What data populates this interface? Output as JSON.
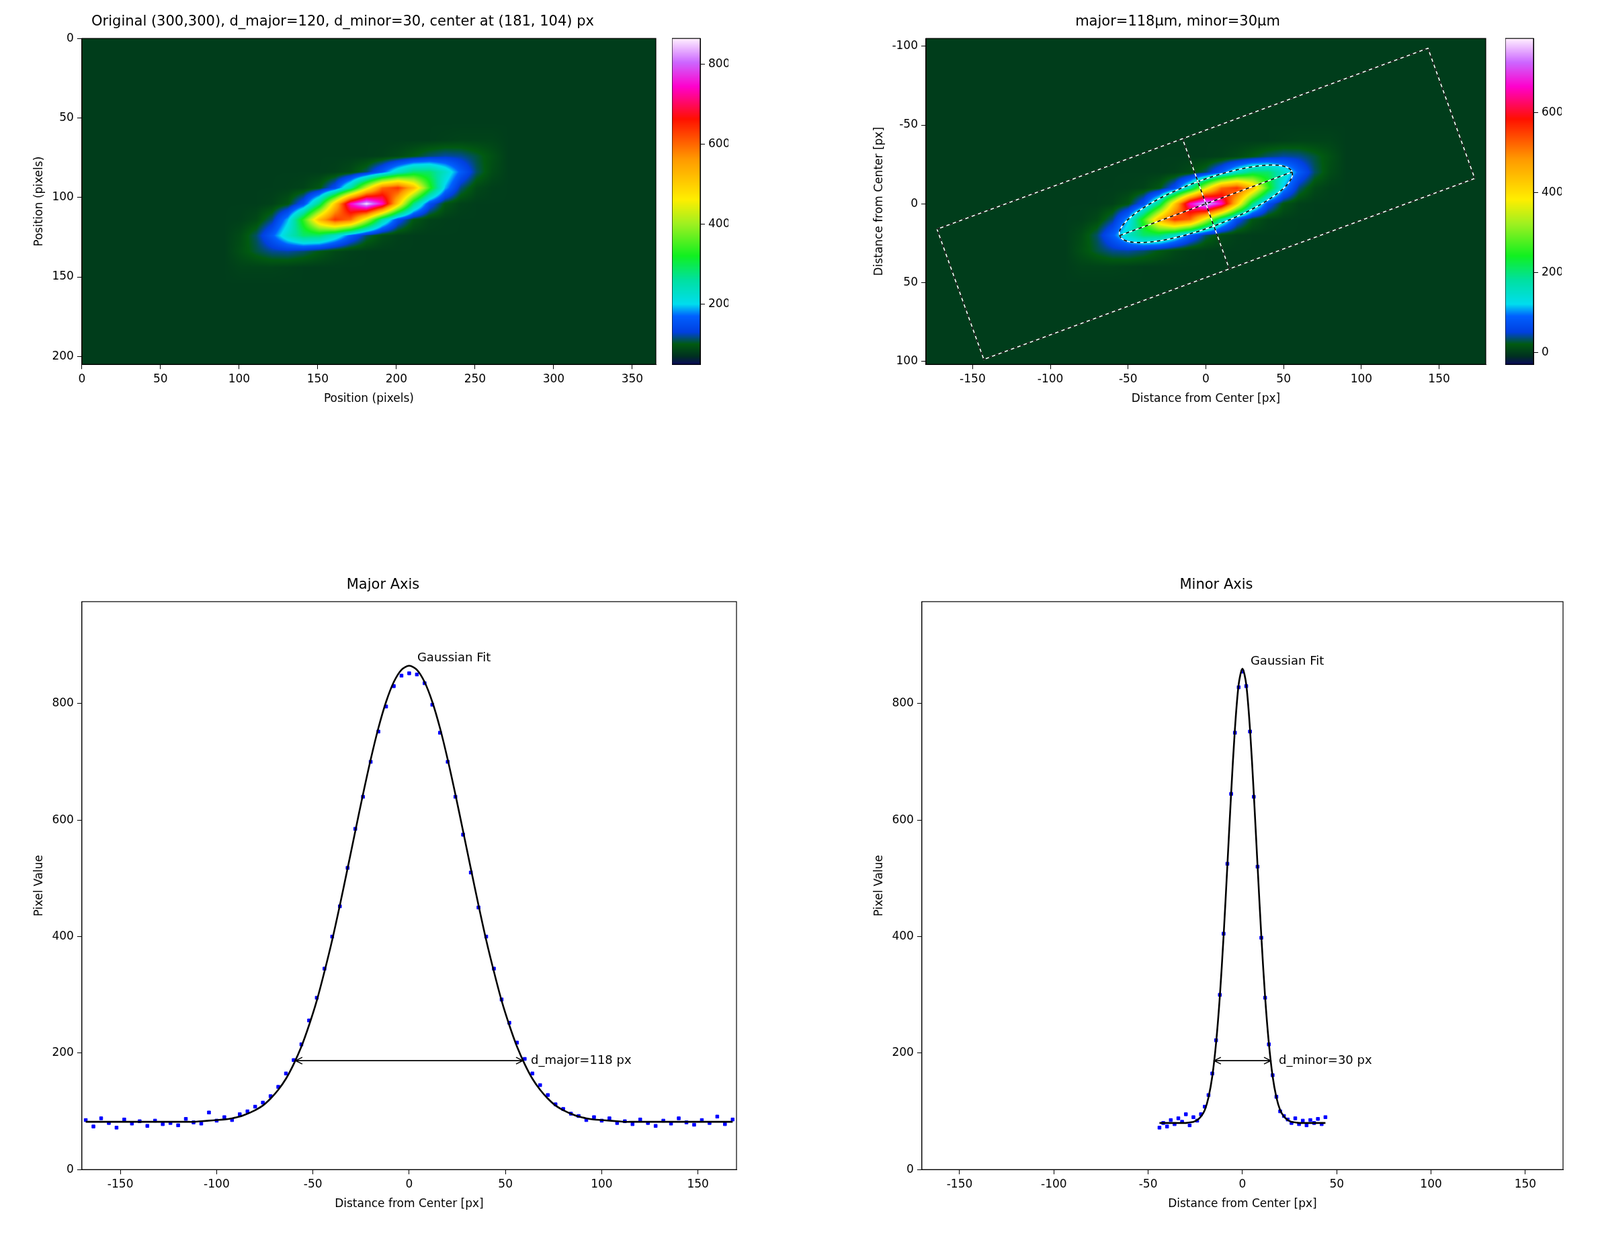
{
  "chart_data": [
    {
      "type": "heatmap",
      "title": "Original (300,300), d_major=120, d_minor=30, center at (181, 104) px",
      "x_label": "Position (pixels)",
      "y_label": "Position (pixels)",
      "xlim": [
        0,
        365
      ],
      "ylim": [
        205,
        0
      ],
      "xticks": [
        0,
        50,
        100,
        150,
        200,
        250,
        300,
        350
      ],
      "yticks": [
        0,
        50,
        100,
        150,
        200
      ],
      "grid": false,
      "background": 80,
      "cells": {
        "x": [
          101,
          111,
          121,
          131,
          141,
          151,
          161,
          171,
          181,
          191,
          201,
          211,
          221,
          231,
          241,
          251,
          261
        ],
        "y": [
          64,
          74,
          84,
          94,
          104,
          114,
          124,
          134,
          144
        ],
        "values": [
          [
            80,
            80,
            80,
            80,
            80,
            80,
            80,
            80,
            80,
            80,
            80,
            80,
            80,
            82,
            84,
            84,
            84
          ],
          [
            80,
            80,
            80,
            80,
            80,
            80,
            80,
            80,
            80,
            82,
            88,
            100,
            114,
            122,
            119,
            107,
            93
          ],
          [
            80,
            80,
            80,
            80,
            80,
            80,
            82,
            90,
            113,
            162,
            231,
            286,
            287,
            232,
            163,
            113,
            90
          ],
          [
            80,
            80,
            80,
            81,
            84,
            98,
            146,
            257,
            433,
            598,
            639,
            525,
            341,
            192,
            116,
            88,
            81
          ],
          [
            80,
            80,
            83,
            97,
            148,
            277,
            503,
            749,
            860,
            749,
            503,
            277,
            148,
            97,
            83,
            80,
            80
          ],
          [
            81,
            88,
            116,
            192,
            341,
            525,
            639,
            598,
            433,
            257,
            146,
            98,
            84,
            81,
            80,
            80,
            80
          ],
          [
            90,
            113,
            163,
            232,
            287,
            286,
            231,
            162,
            113,
            90,
            82,
            80,
            80,
            80,
            80,
            80,
            80
          ],
          [
            93,
            107,
            119,
            122,
            114,
            100,
            88,
            82,
            80,
            80,
            80,
            80,
            80,
            80,
            80,
            80,
            80
          ],
          [
            84,
            84,
            84,
            82,
            80,
            80,
            80,
            80,
            80,
            80,
            80,
            80,
            80,
            80,
            80,
            80,
            80
          ]
        ]
      },
      "colorbar": {
        "range": [
          50,
          865
        ],
        "ticks": [
          200,
          400,
          600,
          800
        ]
      }
    },
    {
      "type": "heatmap",
      "title": "major=118µm, minor=30µm",
      "x_label": "Distance from Center [px]",
      "y_label": "Distance from Center [px]",
      "xlim": [
        -180,
        180
      ],
      "ylim": [
        102,
        -105
      ],
      "xticks": [
        -150,
        -100,
        -50,
        0,
        50,
        100,
        150
      ],
      "yticks": [
        -100,
        -50,
        0,
        50,
        100
      ],
      "grid": false,
      "background": 0,
      "cells": {
        "x": [
          -80,
          -70,
          -60,
          -50,
          -40,
          -30,
          -20,
          -10,
          0,
          10,
          20,
          30,
          40,
          50,
          60,
          70,
          80
        ],
        "y": [
          -40,
          -30,
          -20,
          -10,
          0,
          10,
          20,
          30,
          40
        ],
        "values": [
          [
            0,
            0,
            0,
            0,
            0,
            0,
            0,
            0,
            0,
            0,
            0,
            0,
            0,
            2,
            4,
            4,
            4
          ],
          [
            0,
            0,
            0,
            0,
            0,
            0,
            0,
            0,
            0,
            2,
            8,
            20,
            34,
            42,
            39,
            27,
            13
          ],
          [
            0,
            0,
            0,
            0,
            0,
            0,
            2,
            10,
            33,
            82,
            151,
            206,
            207,
            152,
            83,
            33,
            10
          ],
          [
            0,
            0,
            0,
            1,
            4,
            18,
            66,
            177,
            353,
            518,
            559,
            445,
            261,
            112,
            36,
            8,
            1
          ],
          [
            0,
            0,
            3,
            17,
            68,
            197,
            423,
            669,
            780,
            669,
            423,
            197,
            68,
            17,
            3,
            0,
            0
          ],
          [
            1,
            8,
            36,
            112,
            261,
            445,
            559,
            518,
            353,
            177,
            66,
            18,
            4,
            1,
            0,
            0,
            0
          ],
          [
            10,
            33,
            83,
            152,
            207,
            206,
            151,
            82,
            33,
            10,
            2,
            0,
            0,
            0,
            0,
            0,
            0
          ],
          [
            13,
            27,
            39,
            42,
            34,
            20,
            8,
            2,
            0,
            0,
            0,
            0,
            0,
            0,
            0,
            0,
            0
          ],
          [
            4,
            4,
            4,
            2,
            0,
            0,
            0,
            0,
            0,
            0,
            0,
            0,
            0,
            0,
            0,
            0,
            0
          ]
        ]
      },
      "colorbar": {
        "range": [
          -30,
          785
        ],
        "ticks": [
          0,
          200,
          400,
          600
        ]
      },
      "ellipse": {
        "d_major": 118,
        "d_minor": 30,
        "angle": 20
      }
    },
    {
      "type": "line",
      "title": "Major Axis",
      "x_label": "Distance from Center [px]",
      "y_label": "Pixel Value",
      "xlim": [
        -170,
        170
      ],
      "ylim": [
        0,
        975
      ],
      "xticks": [
        -150,
        -100,
        -50,
        0,
        50,
        100,
        150
      ],
      "yticks": [
        0,
        200,
        400,
        600,
        800
      ],
      "grid": false,
      "series": [
        {
          "type": "scatter",
          "color": "#0000ff",
          "marker": "square",
          "x": [
            -168,
            -164,
            -160,
            -156,
            -152,
            -148,
            -144,
            -140,
            -136,
            -132,
            -128,
            -124,
            -120,
            -116,
            -112,
            -108,
            -104,
            -100,
            -96,
            -92,
            -88,
            -84,
            -80,
            -76,
            -72,
            -68,
            -64,
            -60,
            -56,
            -52,
            -48,
            -44,
            -40,
            -36,
            -32,
            -28,
            -24,
            -20,
            -16,
            -12,
            -8,
            -4,
            0,
            4,
            8,
            12,
            16,
            20,
            24,
            28,
            32,
            36,
            40,
            44,
            48,
            52,
            56,
            60,
            64,
            68,
            72,
            76,
            80,
            84,
            88,
            92,
            96,
            100,
            104,
            108,
            112,
            116,
            120,
            124,
            128,
            132,
            136,
            140,
            144,
            148,
            152,
            156,
            160,
            164,
            168
          ],
          "values": [
            85,
            74,
            88,
            80,
            72,
            86,
            79,
            83,
            75,
            84,
            78,
            80,
            76,
            87,
            81,
            79,
            98,
            84,
            90,
            85,
            95,
            100,
            108,
            115,
            126,
            142,
            165,
            188,
            215,
            256,
            295,
            345,
            400,
            452,
            518,
            585,
            640,
            700,
            752,
            795,
            830,
            848,
            852,
            850,
            835,
            798,
            750,
            700,
            640,
            575,
            510,
            450,
            400,
            345,
            292,
            252,
            218,
            190,
            165,
            145,
            128,
            112,
            104,
            96,
            92,
            85,
            90,
            84,
            88,
            80,
            83,
            78,
            86,
            80,
            75,
            84,
            79,
            88,
            81,
            77,
            85,
            80,
            91,
            78,
            86
          ]
        },
        {
          "type": "line",
          "color": "#000000",
          "line_style": "solid",
          "x": [
            -168,
            -164,
            -160,
            -156,
            -152,
            -148,
            -144,
            -140,
            -136,
            -132,
            -128,
            -124,
            -120,
            -116,
            -112,
            -108,
            -104,
            -100,
            -96,
            -92,
            -88,
            -84,
            -80,
            -76,
            -72,
            -68,
            -64,
            -60,
            -56,
            -52,
            -48,
            -44,
            -40,
            -36,
            -32,
            -28,
            -24,
            -20,
            -16,
            -12,
            -8,
            -4,
            0,
            4,
            8,
            12,
            16,
            20,
            24,
            28,
            32,
            36,
            40,
            44,
            48,
            52,
            56,
            60,
            64,
            68,
            72,
            76,
            80,
            84,
            88,
            92,
            96,
            100,
            104,
            108,
            112,
            116,
            120,
            124,
            128,
            132,
            136,
            140,
            144,
            148,
            152,
            156,
            160,
            164,
            168
          ],
          "values": [
            82,
            82,
            82,
            82,
            82,
            82,
            82,
            82,
            82,
            82,
            82,
            82,
            82,
            82,
            82,
            83,
            84,
            85,
            86,
            88,
            91,
            96,
            102,
            110,
            122,
            137,
            156,
            181,
            211,
            248,
            290,
            340,
            394,
            454,
            517,
            581,
            644,
            704,
            758,
            803,
            837,
            858,
            865,
            858,
            837,
            803,
            758,
            704,
            644,
            581,
            517,
            454,
            394,
            340,
            290,
            248,
            211,
            181,
            156,
            137,
            122,
            110,
            102,
            96,
            91,
            88,
            86,
            85,
            84,
            83,
            82,
            82,
            82,
            82,
            82,
            82,
            82,
            82,
            82,
            82,
            82,
            82,
            82,
            82,
            82
          ]
        }
      ],
      "annotations": [
        {
          "text": "Gaussian Fit",
          "x": 0,
          "y": 865
        },
        {
          "text": "d_major=118 px",
          "x": [
            -59,
            59
          ],
          "y": 187
        }
      ]
    },
    {
      "type": "line",
      "title": "Minor Axis",
      "x_label": "Distance from Center [px]",
      "y_label": "Pixel Value",
      "xlim": [
        -170,
        170
      ],
      "ylim": [
        0,
        975
      ],
      "xticks": [
        -150,
        -100,
        -50,
        0,
        50,
        100,
        150
      ],
      "yticks": [
        0,
        200,
        400,
        600,
        800
      ],
      "grid": false,
      "series": [
        {
          "type": "scatter",
          "color": "#0000ff",
          "marker": "square",
          "x": [
            -44,
            -42,
            -40,
            -38,
            -36,
            -34,
            -32,
            -30,
            -28,
            -26,
            -24,
            -22,
            -20,
            -18,
            -16,
            -14,
            -12,
            -10,
            -8,
            -6,
            -4,
            -2,
            0,
            2,
            4,
            6,
            8,
            10,
            12,
            14,
            16,
            18,
            20,
            22,
            24,
            26,
            28,
            30,
            32,
            34,
            36,
            38,
            40,
            42,
            44
          ],
          "values": [
            72,
            80,
            74,
            85,
            78,
            88,
            82,
            95,
            76,
            90,
            84,
            95,
            108,
            128,
            165,
            222,
            300,
            405,
            525,
            645,
            750,
            828,
            855,
            830,
            752,
            640,
            520,
            398,
            295,
            215,
            162,
            125,
            100,
            92,
            86,
            80,
            88,
            78,
            84,
            76,
            85,
            80,
            87,
            78,
            90
          ]
        },
        {
          "type": "line",
          "color": "#000000",
          "line_style": "solid",
          "x": [
            -44,
            -42,
            -40,
            -38,
            -36,
            -34,
            -32,
            -30,
            -28,
            -26,
            -24,
            -22,
            -20,
            -18,
            -16,
            -14,
            -12,
            -10,
            -8,
            -6,
            -4,
            -2,
            0,
            2,
            4,
            6,
            8,
            10,
            12,
            14,
            16,
            18,
            20,
            22,
            24,
            26,
            28,
            30,
            32,
            34,
            36,
            38,
            40,
            42,
            44
          ],
          "values": [
            80,
            80,
            80,
            80,
            80,
            80,
            80,
            80,
            81,
            82,
            85,
            91,
            102,
            124,
            160,
            217,
            297,
            401,
            522,
            646,
            756,
            833,
            860,
            833,
            756,
            646,
            522,
            401,
            297,
            217,
            160,
            124,
            102,
            91,
            85,
            82,
            81,
            80,
            80,
            80,
            80,
            80,
            80,
            80,
            80
          ]
        }
      ],
      "annotations": [
        {
          "text": "Gaussian Fit",
          "x": 0,
          "y": 860
        },
        {
          "text": "d_minor=30 px",
          "x": [
            -15,
            15
          ],
          "y": 187
        }
      ]
    }
  ]
}
